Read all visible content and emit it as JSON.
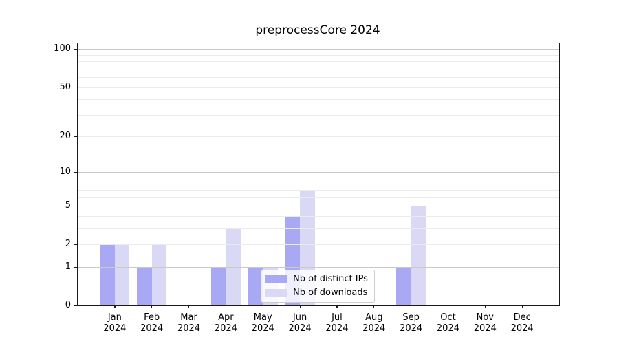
{
  "chart_data": {
    "type": "bar",
    "title": "preprocessCore 2024",
    "year_label": "2024",
    "categories": [
      "Jan",
      "Feb",
      "Mar",
      "Apr",
      "May",
      "Jun",
      "Jul",
      "Aug",
      "Sep",
      "Oct",
      "Nov",
      "Dec"
    ],
    "series": [
      {
        "name": "Nb of distinct IPs",
        "color": "#a8a8f5",
        "values": [
          2,
          1,
          0,
          1,
          1,
          4,
          0,
          0,
          1,
          0,
          0,
          0
        ]
      },
      {
        "name": "Nb of downloads",
        "color": "#d9d9f6",
        "values": [
          2,
          2,
          0,
          3,
          1,
          7,
          0,
          0,
          5,
          0,
          0,
          0
        ]
      }
    ],
    "yscale": "log1p",
    "ylim": [
      0,
      111
    ],
    "yticks": [
      0,
      1,
      2,
      5,
      10,
      20,
      50,
      100
    ],
    "major_gridlines": [
      1,
      10,
      100
    ],
    "minor_gridlines": [
      2,
      3,
      4,
      5,
      6,
      7,
      8,
      9,
      20,
      30,
      40,
      50,
      60,
      70,
      80,
      90
    ],
    "grid": true,
    "legend_position": "inside-bottom-center",
    "colors": {
      "major_grid": "#c9c9c9",
      "minor_grid": "#ebebeb",
      "axis": "#1a1a1a"
    }
  }
}
